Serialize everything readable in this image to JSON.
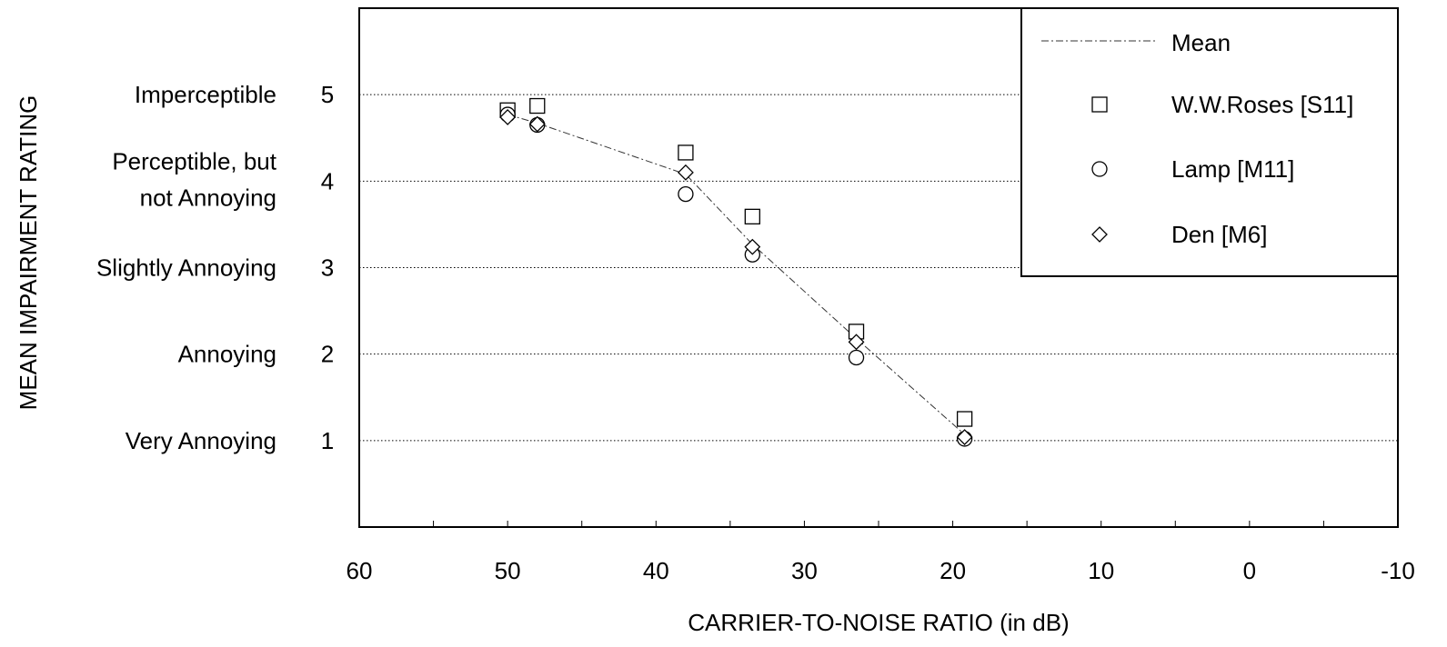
{
  "chart_data": {
    "type": "scatter",
    "xlabel": "CARRIER-TO-NOISE RATIO (in dB)",
    "ylabel": "MEAN IMPAIRMENT RATING",
    "xlim": [
      60,
      -10
    ],
    "x_reversed": true,
    "ylim": [
      0,
      6
    ],
    "x_ticks": [
      60,
      50,
      40,
      30,
      20,
      10,
      0,
      -10
    ],
    "x_tick_labels": [
      "60",
      "50",
      "40",
      "30",
      "20",
      "10",
      "0",
      "-10"
    ],
    "y_ticks": [
      1,
      2,
      3,
      4,
      5
    ],
    "y_tick_labels": [
      "1",
      "2",
      "3",
      "4",
      "5"
    ],
    "y_category_labels": [
      {
        "y": 5,
        "lines": [
          "Imperceptible"
        ]
      },
      {
        "y": 4,
        "lines": [
          "Perceptible, but",
          "not Annoying"
        ]
      },
      {
        "y": 3,
        "lines": [
          "Slightly Annoying"
        ]
      },
      {
        "y": 2,
        "lines": [
          "Annoying"
        ]
      },
      {
        "y": 1,
        "lines": [
          "Very Annoying"
        ]
      }
    ],
    "grid": "horizontal dotted at y ticks",
    "legend_position": "top-right",
    "series": [
      {
        "name": "Mean",
        "marker": "none",
        "line": "dash-dot",
        "x": [
          50,
          48,
          38,
          33.5,
          26.5,
          19.2
        ],
        "y": [
          4.77,
          4.67,
          4.08,
          3.27,
          2.18,
          1.07
        ]
      },
      {
        "name": "W.W.Roses [S11]",
        "marker": "square",
        "x": [
          50,
          48,
          38,
          33.5,
          26.5,
          19.2
        ],
        "y": [
          4.82,
          4.87,
          4.33,
          3.59,
          2.26,
          1.25
        ]
      },
      {
        "name": "Lamp [M11]",
        "marker": "circle",
        "x": [
          50,
          48,
          38,
          33.5,
          26.5,
          19.2
        ],
        "y": [
          4.77,
          4.65,
          3.85,
          3.15,
          1.96,
          1.02
        ]
      },
      {
        "name": "Den [M6]",
        "marker": "diamond",
        "x": [
          50,
          48,
          38,
          33.5,
          26.5,
          19.2
        ],
        "y": [
          4.74,
          4.66,
          4.1,
          3.24,
          2.14,
          1.04
        ]
      }
    ]
  }
}
